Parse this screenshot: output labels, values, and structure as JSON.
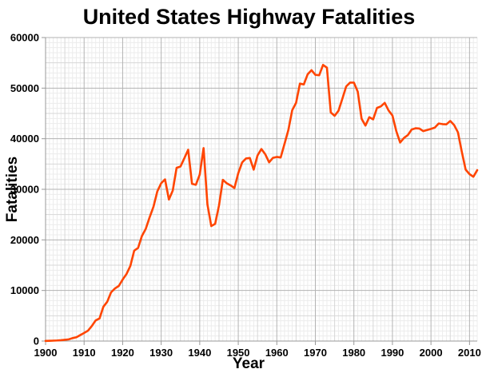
{
  "page": {
    "background": "#ffffff"
  },
  "chart_data": {
    "type": "line",
    "title": "United States Highway Fatalities",
    "xlabel": "Year",
    "ylabel": "Fatalities",
    "xlim": [
      1900,
      2012
    ],
    "ylim": [
      0,
      60000
    ],
    "x_ticks": [
      1900,
      1910,
      1920,
      1930,
      1940,
      1950,
      1960,
      1970,
      1980,
      1990,
      2000,
      2010
    ],
    "y_ticks": [
      0,
      10000,
      20000,
      30000,
      40000,
      50000,
      60000
    ],
    "grid": {
      "show": true,
      "minor_x_step_years": 1,
      "medium_x_step_years": 5,
      "major_x_step_years": 10,
      "minor_y_step": 1000,
      "medium_y_step": 5000,
      "major_y_step": 10000
    },
    "legend": {
      "show": false
    },
    "colors": {
      "line": "#ff4500",
      "grid_minor": "#ececec",
      "grid_medium": "#d7d7d7",
      "grid_major": "#b3b3b3",
      "axis": "#999999",
      "text": "#000000",
      "background": "#ffffff"
    },
    "series": [
      {
        "name": "Highway fatalities",
        "x_start": 1900,
        "x_step": 1,
        "values": [
          36,
          54,
          79,
          117,
          172,
          252,
          338,
          581,
          751,
          1174,
          1599,
          2043,
          2968,
          4079,
          4468,
          6779,
          7766,
          9630,
          10390,
          10896,
          12155,
          13253,
          14859,
          17870,
          18400,
          20771,
          22194,
          24470,
          26557,
          29592,
          31204,
          31963,
          27979,
          29746,
          34240,
          34494,
          36126,
          37819,
          31083,
          30895,
          32914,
          38142,
          27007,
          22727,
          23165,
          26785,
          31874,
          31193,
          30775,
          30246,
          33186,
          35309,
          36088,
          36190,
          33890,
          36688,
          37965,
          36932,
          35331,
          36223,
          36399,
          36285,
          38980,
          41723,
          45645,
          47089,
          50894,
          50724,
          52725,
          53543,
          52627,
          52542,
          54589,
          54052,
          45196,
          44525,
          45523,
          47878,
          50331,
          51093,
          51091,
          49301,
          43945,
          42589,
          44257,
          43825,
          46087,
          46390,
          47087,
          45582,
          44599,
          41508,
          39250,
          40150,
          40716,
          41817,
          42065,
          42013,
          41501,
          41717,
          41945,
          42196,
          43005,
          42884,
          42836,
          43510,
          42708,
          41259,
          37423,
          33883,
          32999,
          32479,
          33782
        ]
      }
    ]
  }
}
